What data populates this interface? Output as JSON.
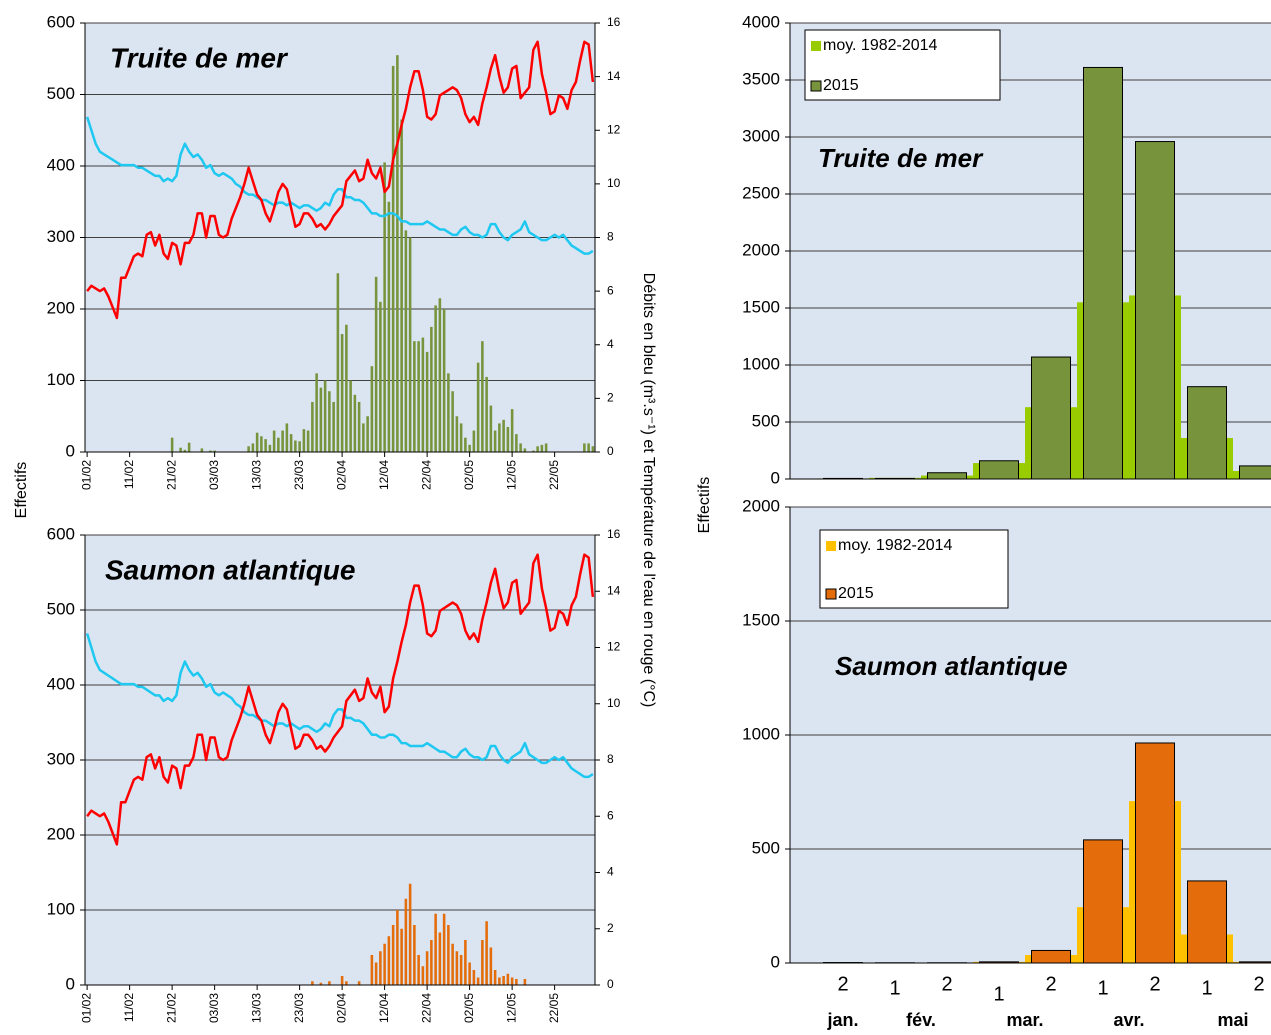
{
  "chart_data": [
    {
      "type": "combo",
      "title": "Truite de mer",
      "title_color": "#77933c",
      "ylabel": "Effectifs",
      "y2label": "Débits en bleu (m³.s⁻¹) et Température de l'eau en rouge (°C)",
      "ylim": [
        0,
        600
      ],
      "yticks": [
        0,
        100,
        200,
        300,
        400,
        500,
        600
      ],
      "y2lim": [
        0,
        16
      ],
      "y2ticks": [
        0,
        2,
        4,
        6,
        8,
        10,
        12,
        14,
        16
      ],
      "grid": true,
      "categories": [
        "01/02",
        null,
        null,
        null,
        null,
        null,
        null,
        null,
        null,
        null,
        "11/02",
        null,
        null,
        null,
        null,
        null,
        null,
        null,
        null,
        null,
        "21/02",
        null,
        null,
        null,
        null,
        null,
        null,
        null,
        null,
        null,
        "03/03",
        null,
        null,
        null,
        null,
        null,
        null,
        null,
        null,
        null,
        "13/03",
        null,
        null,
        null,
        null,
        null,
        null,
        null,
        null,
        null,
        "23/03",
        null,
        null,
        null,
        null,
        null,
        null,
        null,
        null,
        null,
        "02/04",
        null,
        null,
        null,
        null,
        null,
        null,
        null,
        null,
        null,
        "12/04",
        null,
        null,
        null,
        null,
        null,
        null,
        null,
        null,
        null,
        "22/04",
        null,
        null,
        null,
        null,
        null,
        null,
        null,
        null,
        null,
        "02/05",
        null,
        null,
        null,
        null,
        null,
        null,
        null,
        null,
        null,
        "12/05",
        null,
        null,
        null,
        null,
        null,
        null,
        null,
        null,
        null,
        "22/05",
        null,
        null,
        null,
        null,
        null,
        null,
        null,
        null,
        null
      ],
      "series": [
        {
          "type": "bar",
          "color": "#77933c",
          "values": [
            0,
            0,
            0,
            0,
            0,
            0,
            0,
            0,
            0,
            0,
            0,
            0,
            0,
            0,
            0,
            0,
            0,
            0,
            0,
            0,
            20,
            0,
            6,
            3,
            13,
            0,
            0,
            5,
            0,
            2,
            2,
            0,
            0,
            0,
            0,
            0,
            0,
            0,
            8,
            12,
            27,
            22,
            18,
            10,
            30,
            20,
            30,
            40,
            25,
            16,
            15,
            32,
            30,
            70,
            110,
            90,
            100,
            85,
            70,
            250,
            165,
            178,
            100,
            80,
            70,
            40,
            50,
            120,
            245,
            210,
            405,
            350,
            540,
            555,
            465,
            310,
            300,
            155,
            155,
            160,
            140,
            175,
            205,
            215,
            200,
            110,
            85,
            50,
            40,
            20,
            10,
            30,
            125,
            155,
            105,
            65,
            30,
            40,
            45,
            35,
            60,
            25,
            12,
            5,
            0,
            2,
            8,
            10,
            12,
            0,
            0,
            0,
            0,
            0,
            0,
            0,
            0,
            12,
            12,
            8
          ]
        },
        {
          "type": "line",
          "axis": "y2",
          "color": "#1ec8f0",
          "values": [
            12.5,
            12.0,
            11.5,
            11.2,
            11.1,
            11.0,
            10.9,
            10.8,
            10.7,
            10.7,
            10.7,
            10.7,
            10.6,
            10.6,
            10.5,
            10.4,
            10.3,
            10.3,
            10.1,
            10.2,
            10.1,
            10.3,
            11.1,
            11.5,
            11.2,
            11.0,
            11.1,
            10.9,
            10.6,
            10.7,
            10.4,
            10.3,
            10.4,
            10.3,
            10.2,
            10.0,
            9.9,
            9.7,
            9.6,
            9.6,
            9.5,
            9.4,
            9.4,
            9.3,
            9.2,
            9.3,
            9.3,
            9.2,
            9.3,
            9.2,
            9.1,
            9.2,
            9.2,
            9.1,
            9.0,
            9.1,
            9.3,
            9.2,
            9.6,
            9.8,
            9.8,
            9.5,
            9.5,
            9.4,
            9.4,
            9.3,
            9.1,
            8.9,
            8.9,
            8.8,
            8.8,
            8.9,
            8.9,
            8.8,
            8.6,
            8.6,
            8.5,
            8.5,
            8.5,
            8.5,
            8.6,
            8.5,
            8.4,
            8.3,
            8.3,
            8.2,
            8.1,
            8.1,
            8.3,
            8.4,
            8.2,
            8.1,
            8.1,
            8.0,
            8.1,
            8.5,
            8.5,
            8.2,
            8.0,
            7.9,
            8.1,
            8.2,
            8.3,
            8.6,
            8.2,
            8.1,
            8.0,
            7.9,
            7.9,
            8.0,
            8.1,
            8.0,
            8.1,
            7.9,
            7.7,
            7.6,
            7.5,
            7.4,
            7.4,
            7.5
          ]
        },
        {
          "type": "line",
          "axis": "y2",
          "color": "#ff0000",
          "values": [
            6.0,
            6.2,
            6.1,
            6.0,
            6.1,
            5.8,
            5.4,
            5.0,
            6.5,
            6.5,
            6.9,
            7.3,
            7.4,
            7.3,
            8.1,
            8.2,
            7.7,
            8.1,
            7.4,
            7.2,
            7.8,
            7.7,
            7.0,
            7.8,
            7.8,
            8.1,
            8.9,
            8.9,
            8.0,
            8.8,
            8.8,
            8.1,
            8.0,
            8.1,
            8.7,
            9.1,
            9.5,
            10.0,
            10.6,
            10.1,
            9.6,
            9.4,
            8.9,
            8.6,
            9.1,
            9.7,
            10.0,
            9.8,
            9.1,
            8.4,
            8.5,
            8.9,
            8.9,
            8.7,
            8.4,
            8.5,
            8.3,
            8.5,
            8.8,
            9.0,
            9.2,
            10.1,
            10.3,
            10.5,
            10.1,
            10.2,
            10.9,
            10.4,
            10.2,
            10.6,
            9.7,
            9.9,
            10.9,
            11.5,
            12.2,
            12.8,
            13.6,
            14.2,
            14.2,
            13.5,
            12.5,
            12.4,
            12.6,
            13.3,
            13.4,
            13.5,
            13.6,
            13.5,
            13.2,
            12.6,
            12.3,
            12.5,
            12.2,
            13.0,
            13.6,
            14.3,
            14.8,
            14.0,
            13.4,
            13.6,
            14.3,
            14.4,
            13.2,
            13.4,
            13.6,
            15.0,
            15.3,
            14.1,
            13.4,
            12.6,
            12.7,
            13.3,
            13.2,
            12.8,
            13.5,
            13.8,
            14.6,
            15.3,
            15.2,
            13.8
          ]
        }
      ]
    },
    {
      "type": "combo",
      "title": "Saumon atlantique",
      "title_color": "#e46c0a",
      "ylim": [
        0,
        600
      ],
      "yticks": [
        0,
        100,
        200,
        300,
        400,
        500,
        600
      ],
      "y2lim": [
        0,
        16
      ],
      "y2ticks": [
        0,
        2,
        4,
        6,
        8,
        10,
        12,
        14,
        16
      ],
      "grid": true,
      "categories": [
        "01/02",
        null,
        null,
        null,
        null,
        null,
        null,
        null,
        null,
        null,
        "11/02",
        null,
        null,
        null,
        null,
        null,
        null,
        null,
        null,
        null,
        "21/02",
        null,
        null,
        null,
        null,
        null,
        null,
        null,
        null,
        null,
        "03/03",
        null,
        null,
        null,
        null,
        null,
        null,
        null,
        null,
        null,
        "13/03",
        null,
        null,
        null,
        null,
        null,
        null,
        null,
        null,
        null,
        "23/03",
        null,
        null,
        null,
        null,
        null,
        null,
        null,
        null,
        null,
        "02/04",
        null,
        null,
        null,
        null,
        null,
        null,
        null,
        null,
        null,
        "12/04",
        null,
        null,
        null,
        null,
        null,
        null,
        null,
        null,
        null,
        "22/04",
        null,
        null,
        null,
        null,
        null,
        null,
        null,
        null,
        null,
        "02/05",
        null,
        null,
        null,
        null,
        null,
        null,
        null,
        null,
        null,
        "12/05",
        null,
        null,
        null,
        null,
        null,
        null,
        null,
        null,
        null,
        "22/05",
        null,
        null,
        null,
        null,
        null,
        null,
        null,
        null,
        null
      ],
      "series": [
        {
          "type": "bar",
          "color": "#e46c0a",
          "values": [
            0,
            0,
            0,
            0,
            0,
            0,
            0,
            0,
            0,
            0,
            0,
            0,
            0,
            0,
            0,
            0,
            0,
            0,
            0,
            0,
            0,
            0,
            0,
            0,
            0,
            0,
            0,
            0,
            0,
            0,
            0,
            0,
            0,
            0,
            0,
            0,
            0,
            0,
            0,
            0,
            0,
            0,
            0,
            0,
            0,
            0,
            0,
            0,
            0,
            0,
            0,
            0,
            0,
            5,
            0,
            3,
            0,
            5,
            0,
            0,
            12,
            5,
            0,
            0,
            5,
            0,
            0,
            40,
            30,
            45,
            55,
            65,
            80,
            100,
            75,
            115,
            135,
            80,
            40,
            25,
            45,
            60,
            95,
            70,
            95,
            80,
            55,
            45,
            40,
            60,
            30,
            20,
            10,
            60,
            85,
            50,
            20,
            10,
            12,
            15,
            10,
            8,
            0,
            8,
            0,
            0,
            0,
            0,
            0,
            0,
            0,
            0,
            0,
            0,
            0,
            0,
            0,
            0,
            0,
            0
          ]
        },
        {
          "type": "line",
          "axis": "y2",
          "color": "#1ec8f0",
          "values": [
            12.5,
            12.0,
            11.5,
            11.2,
            11.1,
            11.0,
            10.9,
            10.8,
            10.7,
            10.7,
            10.7,
            10.7,
            10.6,
            10.6,
            10.5,
            10.4,
            10.3,
            10.3,
            10.1,
            10.2,
            10.1,
            10.3,
            11.1,
            11.5,
            11.2,
            11.0,
            11.1,
            10.9,
            10.6,
            10.7,
            10.4,
            10.3,
            10.4,
            10.3,
            10.2,
            10.0,
            9.9,
            9.7,
            9.6,
            9.6,
            9.5,
            9.4,
            9.4,
            9.3,
            9.2,
            9.3,
            9.3,
            9.2,
            9.3,
            9.2,
            9.1,
            9.2,
            9.2,
            9.1,
            9.0,
            9.1,
            9.3,
            9.2,
            9.6,
            9.8,
            9.8,
            9.5,
            9.5,
            9.4,
            9.4,
            9.3,
            9.1,
            8.9,
            8.9,
            8.8,
            8.8,
            8.9,
            8.9,
            8.8,
            8.6,
            8.6,
            8.5,
            8.5,
            8.5,
            8.5,
            8.6,
            8.5,
            8.4,
            8.3,
            8.3,
            8.2,
            8.1,
            8.1,
            8.3,
            8.4,
            8.2,
            8.1,
            8.1,
            8.0,
            8.1,
            8.5,
            8.5,
            8.2,
            8.0,
            7.9,
            8.1,
            8.2,
            8.3,
            8.6,
            8.2,
            8.1,
            8.0,
            7.9,
            7.9,
            8.0,
            8.1,
            8.0,
            8.1,
            7.9,
            7.7,
            7.6,
            7.5,
            7.4,
            7.4,
            7.5
          ]
        },
        {
          "type": "line",
          "axis": "y2",
          "color": "#ff0000",
          "values": [
            6.0,
            6.2,
            6.1,
            6.0,
            6.1,
            5.8,
            5.4,
            5.0,
            6.5,
            6.5,
            6.9,
            7.3,
            7.4,
            7.3,
            8.1,
            8.2,
            7.7,
            8.1,
            7.4,
            7.2,
            7.8,
            7.7,
            7.0,
            7.8,
            7.8,
            8.1,
            8.9,
            8.9,
            8.0,
            8.8,
            8.8,
            8.1,
            8.0,
            8.1,
            8.7,
            9.1,
            9.5,
            10.0,
            10.6,
            10.1,
            9.6,
            9.4,
            8.9,
            8.6,
            9.1,
            9.7,
            10.0,
            9.8,
            9.1,
            8.4,
            8.5,
            8.9,
            8.9,
            8.7,
            8.4,
            8.5,
            8.3,
            8.5,
            8.8,
            9.0,
            9.2,
            10.1,
            10.3,
            10.5,
            10.1,
            10.2,
            10.9,
            10.4,
            10.2,
            10.6,
            9.7,
            9.9,
            10.9,
            11.5,
            12.2,
            12.8,
            13.6,
            14.2,
            14.2,
            13.5,
            12.5,
            12.4,
            12.6,
            13.3,
            13.4,
            13.5,
            13.6,
            13.5,
            13.2,
            12.6,
            12.3,
            12.5,
            12.2,
            13.0,
            13.6,
            14.3,
            14.8,
            14.0,
            13.4,
            13.6,
            14.3,
            14.4,
            13.2,
            13.4,
            13.6,
            15.0,
            15.3,
            14.1,
            13.4,
            12.6,
            12.7,
            13.3,
            13.2,
            12.8,
            13.5,
            13.8,
            14.6,
            15.3,
            15.2,
            13.8
          ]
        }
      ]
    },
    {
      "type": "bar",
      "title": "Truite de mer",
      "title_color": "#4f6228",
      "ylabel": "Effectifs",
      "ylim": [
        0,
        4000
      ],
      "yticks": [
        0,
        500,
        1000,
        1500,
        2000,
        2500,
        3000,
        3500,
        4000
      ],
      "grid": true,
      "legend": "top-left",
      "categories": [
        null,
        null,
        null,
        null,
        null,
        null,
        null,
        null,
        null
      ],
      "series": [
        {
          "name": "moy. 1982-2014",
          "color": "#99cc00",
          "values": [
            5,
            10,
            30,
            140,
            630,
            1550,
            1610,
            360,
            70
          ]
        },
        {
          "name": "2015",
          "color": "#77933c",
          "values": [
            5,
            5,
            55,
            160,
            1070,
            3610,
            2960,
            810,
            115
          ]
        }
      ]
    },
    {
      "type": "bar",
      "title": "Saumon atlantique",
      "title_color": "#e46c0a",
      "ylim": [
        0,
        2000
      ],
      "yticks": [
        0,
        500,
        1000,
        1500,
        2000
      ],
      "grid": true,
      "legend": "top-left",
      "categories": [
        "2",
        "1",
        "2",
        "1",
        "2",
        "1",
        "2",
        "1",
        "2"
      ],
      "group_labels": [
        "jan.",
        "fév.",
        "mar.",
        "avr.",
        "mai"
      ],
      "series": [
        {
          "name": "moy. 1982-2014",
          "color": "#ffc000",
          "values": [
            0,
            0,
            2,
            5,
            35,
            245,
            710,
            125,
            5
          ]
        },
        {
          "name": "2015",
          "color": "#e46c0a",
          "values": [
            2,
            1,
            1,
            5,
            55,
            540,
            965,
            360,
            5
          ]
        }
      ]
    }
  ]
}
